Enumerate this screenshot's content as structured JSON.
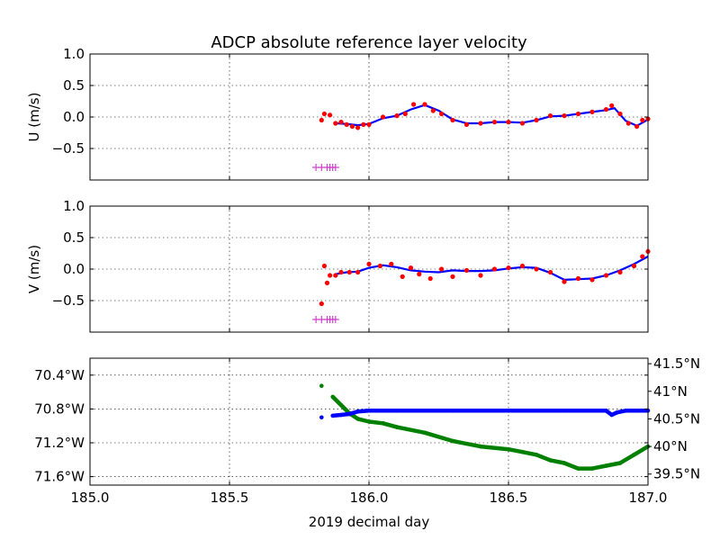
{
  "figure": {
    "title": "ADCP absolute reference layer velocity",
    "xlabel": "2019 decimal day",
    "colors": {
      "primary": "#ff0000",
      "smoothed": "#0000ff",
      "flag": "#cc44cc",
      "lon": "#0000ff",
      "lat": "#008000"
    }
  },
  "chart_data": [
    {
      "type": "scatter",
      "panel": "u",
      "ylabel": "U (m/s)",
      "xlim": [
        185.0,
        187.0
      ],
      "ylim": [
        -1.0,
        1.0
      ],
      "yticks": [
        -0.5,
        0.0,
        0.5,
        1.0
      ],
      "ytick_labels": [
        "−0.5",
        "0.0",
        "0.5",
        "1.0"
      ],
      "grid": true,
      "series": [
        {
          "role": "points",
          "x": [
            185.83,
            185.84,
            185.86,
            185.88,
            185.9,
            185.92,
            185.94,
            185.96,
            185.98,
            186.0,
            186.05,
            186.1,
            186.13,
            186.16,
            186.2,
            186.23,
            186.26,
            186.3,
            186.35,
            186.4,
            186.45,
            186.5,
            186.55,
            186.6,
            186.65,
            186.7,
            186.75,
            186.8,
            186.85,
            186.87,
            186.9,
            186.93,
            186.96,
            186.98,
            187.0
          ],
          "y": [
            -0.05,
            0.05,
            0.03,
            -0.1,
            -0.08,
            -0.12,
            -0.15,
            -0.17,
            -0.12,
            -0.12,
            0.0,
            0.02,
            0.05,
            0.2,
            0.2,
            0.1,
            0.05,
            -0.05,
            -0.12,
            -0.1,
            -0.08,
            -0.08,
            -0.1,
            -0.05,
            0.02,
            0.02,
            0.05,
            0.08,
            0.12,
            0.18,
            0.05,
            -0.1,
            -0.15,
            -0.05,
            -0.03
          ]
        },
        {
          "role": "smoothed",
          "x": [
            185.88,
            185.92,
            185.96,
            186.0,
            186.05,
            186.1,
            186.15,
            186.2,
            186.25,
            186.3,
            186.35,
            186.4,
            186.45,
            186.5,
            186.55,
            186.6,
            186.65,
            186.7,
            186.75,
            186.8,
            186.85,
            186.88,
            186.92,
            186.96,
            187.0
          ],
          "y": [
            -0.1,
            -0.11,
            -0.13,
            -0.11,
            -0.02,
            0.02,
            0.12,
            0.19,
            0.1,
            -0.04,
            -0.1,
            -0.1,
            -0.08,
            -0.08,
            -0.09,
            -0.05,
            0.01,
            0.02,
            0.05,
            0.08,
            0.11,
            0.14,
            -0.06,
            -0.14,
            -0.04
          ]
        }
      ],
      "flags": {
        "x": [
          185.81,
          185.83,
          185.85,
          185.86,
          185.87,
          185.88
        ],
        "y": -0.8
      }
    },
    {
      "type": "scatter",
      "panel": "v",
      "ylabel": "V (m/s)",
      "xlim": [
        185.0,
        187.0
      ],
      "ylim": [
        -1.0,
        1.0
      ],
      "yticks": [
        -0.5,
        0.0,
        0.5,
        1.0
      ],
      "ytick_labels": [
        "−0.5",
        "0.0",
        "0.5",
        "1.0"
      ],
      "grid": true,
      "series": [
        {
          "role": "points",
          "x": [
            185.83,
            185.84,
            185.85,
            185.86,
            185.88,
            185.9,
            185.93,
            185.96,
            186.0,
            186.04,
            186.08,
            186.12,
            186.15,
            186.18,
            186.22,
            186.26,
            186.3,
            186.35,
            186.4,
            186.45,
            186.5,
            186.55,
            186.6,
            186.65,
            186.7,
            186.75,
            186.8,
            186.85,
            186.9,
            186.95,
            186.98,
            187.0
          ],
          "y": [
            -0.55,
            0.05,
            -0.22,
            -0.1,
            -0.1,
            -0.05,
            -0.05,
            -0.05,
            0.08,
            0.05,
            0.08,
            -0.12,
            0.02,
            -0.08,
            -0.15,
            0.0,
            -0.12,
            -0.02,
            -0.1,
            0.0,
            0.02,
            0.05,
            0.0,
            -0.05,
            -0.2,
            -0.15,
            -0.17,
            -0.1,
            -0.05,
            0.05,
            0.2,
            0.28
          ]
        },
        {
          "role": "smoothed",
          "x": [
            185.88,
            185.92,
            185.96,
            186.0,
            186.05,
            186.1,
            186.15,
            186.2,
            186.25,
            186.3,
            186.35,
            186.4,
            186.45,
            186.5,
            186.55,
            186.6,
            186.65,
            186.7,
            186.75,
            186.8,
            186.85,
            186.9,
            186.95,
            187.0
          ],
          "y": [
            -0.08,
            -0.05,
            -0.04,
            0.02,
            0.06,
            0.03,
            -0.02,
            -0.04,
            -0.05,
            -0.02,
            -0.03,
            -0.03,
            -0.02,
            0.01,
            0.03,
            0.02,
            -0.06,
            -0.17,
            -0.16,
            -0.15,
            -0.1,
            -0.02,
            0.08,
            0.2
          ]
        }
      ],
      "flags": {
        "x": [
          185.81,
          185.83,
          185.85,
          185.86,
          185.87,
          185.88
        ],
        "y": -0.8
      }
    },
    {
      "type": "scatter",
      "panel": "position",
      "xlim": [
        185.0,
        187.0
      ],
      "xticks": [
        185.0,
        185.5,
        186.0,
        186.5,
        187.0
      ],
      "xtick_labels": [
        "185.0",
        "185.5",
        "186.0",
        "186.5",
        "187.0"
      ],
      "left_axis": {
        "ylim": [
          -71.7,
          -70.2
        ],
        "yticks": [
          -70.4,
          -70.8,
          -71.2,
          -71.6
        ],
        "ytick_labels": [
          "70.4°W",
          "70.8°W",
          "71.2°W",
          "71.6°W"
        ]
      },
      "right_axis": {
        "ylim": [
          39.3,
          41.6
        ],
        "yticks": [
          41.5,
          41.0,
          40.5,
          40.0,
          39.5
        ],
        "ytick_labels": [
          "41.5°N",
          "41°N",
          "40.5°N",
          "40°N",
          "39.5°N"
        ]
      },
      "grid": true,
      "series": [
        {
          "role": "longitude",
          "axis": "left",
          "x": [
            185.83,
            185.87,
            185.9,
            185.93,
            185.96,
            186.0,
            186.1,
            186.3,
            186.5,
            186.7,
            186.85,
            186.87,
            186.89,
            186.92,
            187.0
          ],
          "y": [
            -70.9,
            -70.88,
            -70.87,
            -70.86,
            -70.83,
            -70.82,
            -70.82,
            -70.82,
            -70.82,
            -70.82,
            -70.82,
            -70.87,
            -70.84,
            -70.82,
            -70.82
          ]
        },
        {
          "role": "latitude",
          "axis": "right",
          "x": [
            185.83,
            185.87,
            185.9,
            185.93,
            185.96,
            186.0,
            186.05,
            186.1,
            186.2,
            186.3,
            186.4,
            186.5,
            186.55,
            186.6,
            186.65,
            186.7,
            186.75,
            186.8,
            186.85,
            186.9,
            186.95,
            187.0
          ],
          "y": [
            41.1,
            40.9,
            40.75,
            40.6,
            40.5,
            40.45,
            40.42,
            40.35,
            40.25,
            40.1,
            40.0,
            39.95,
            39.9,
            39.85,
            39.75,
            39.7,
            39.6,
            39.6,
            39.65,
            39.7,
            39.85,
            40.0
          ]
        }
      ]
    }
  ]
}
